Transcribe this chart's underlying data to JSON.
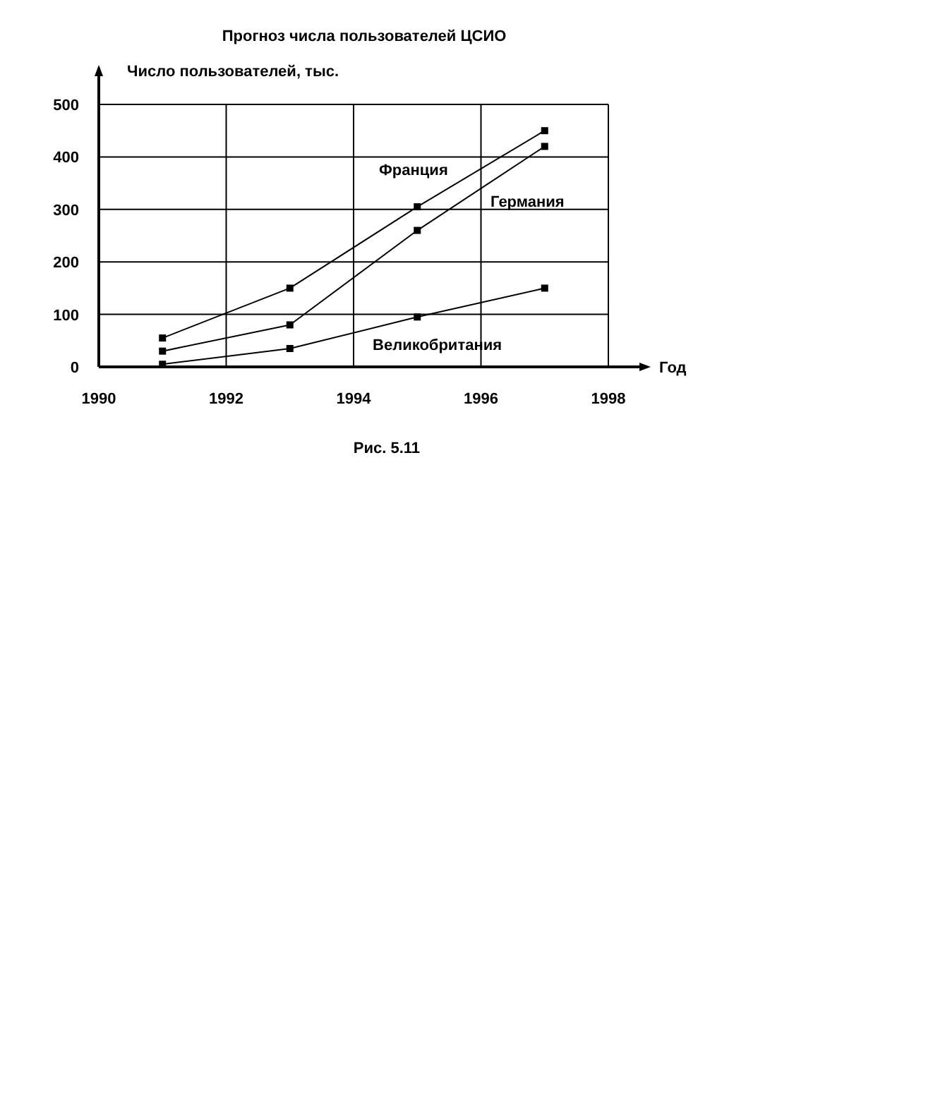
{
  "chart_data": {
    "type": "line",
    "title": "Прогноз числа пользователей ЦСИО",
    "xlabel": "Год",
    "ylabel": "Число пользователей, тыс.",
    "x": [
      1991,
      1993,
      1995,
      1997
    ],
    "series": [
      {
        "name": "Франция",
        "color": "#000000",
        "values": [
          55,
          150,
          305,
          450
        ]
      },
      {
        "name": "Германия",
        "color": "#000000",
        "values": [
          30,
          80,
          260,
          420
        ]
      },
      {
        "name": "Великобритания",
        "color": "#000000",
        "values": [
          5,
          35,
          95,
          150
        ]
      }
    ],
    "xlim": [
      1990,
      1998
    ],
    "xticks": [
      1990,
      1992,
      1994,
      1996,
      1998
    ],
    "ylim": [
      0,
      500
    ],
    "yticks": [
      0,
      100,
      200,
      300,
      400,
      500
    ],
    "grid": true,
    "marker": "square",
    "line_style": "solid",
    "annotations": [
      "Рис. 5.11"
    ]
  }
}
